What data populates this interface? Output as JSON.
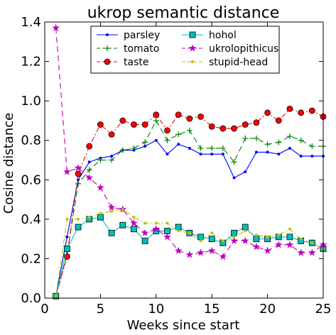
{
  "chart_data": {
    "type": "line",
    "title": "ukrop semantic distance",
    "xlabel": "Weeks since start",
    "ylabel": "Cosine distance",
    "xlim": [
      0,
      25
    ],
    "ylim": [
      0.0,
      1.4
    ],
    "xticks": [
      0,
      5,
      10,
      15,
      20,
      25
    ],
    "yticks": [
      0.0,
      0.2,
      0.4,
      0.6,
      0.8,
      1.0,
      1.2,
      1.4
    ],
    "grid": false,
    "legend_placement": "top-center",
    "series": [
      {
        "name": "parsley",
        "color": "#0000ff",
        "linestyle": "solid",
        "marker": "dot",
        "x": [
          1,
          2,
          3,
          4,
          5,
          6,
          7,
          8,
          9,
          10,
          11,
          12,
          13,
          14,
          15,
          16,
          17,
          18,
          19,
          20,
          21,
          22,
          23,
          24,
          25
        ],
        "y": [
          0.01,
          0.31,
          0.6,
          0.69,
          0.71,
          0.72,
          0.75,
          0.75,
          0.77,
          0.8,
          0.73,
          0.78,
          0.76,
          0.73,
          0.73,
          0.73,
          0.61,
          0.64,
          0.74,
          0.74,
          0.73,
          0.76,
          0.72,
          0.72,
          0.72
        ]
      },
      {
        "name": "tomato",
        "color": "#008000",
        "linestyle": "dashed",
        "marker": "plus",
        "x": [
          1,
          2,
          3,
          4,
          5,
          6,
          7,
          8,
          9,
          10,
          11,
          12,
          13,
          14,
          15,
          16,
          17,
          18,
          19,
          20,
          21,
          22,
          23,
          24,
          25
        ],
        "y": [
          0.01,
          0.22,
          0.58,
          0.65,
          0.7,
          0.7,
          0.75,
          0.76,
          0.79,
          0.9,
          0.8,
          0.83,
          0.85,
          0.76,
          0.76,
          0.76,
          0.69,
          0.81,
          0.81,
          0.78,
          0.79,
          0.82,
          0.8,
          0.77,
          0.77
        ]
      },
      {
        "name": "taste",
        "color": "#ff0000",
        "linestyle": "dashdot",
        "marker": "circle",
        "x": [
          1,
          2,
          3,
          4,
          5,
          6,
          7,
          8,
          9,
          10,
          11,
          12,
          13,
          14,
          15,
          16,
          17,
          18,
          19,
          20,
          21,
          22,
          23,
          24,
          25
        ],
        "y": [
          0.01,
          0.21,
          0.63,
          0.77,
          0.88,
          0.83,
          0.9,
          0.88,
          0.88,
          0.93,
          0.85,
          0.93,
          0.91,
          0.92,
          0.87,
          0.86,
          0.86,
          0.88,
          0.89,
          0.94,
          0.9,
          0.96,
          0.94,
          0.95,
          0.92
        ]
      },
      {
        "name": "hohol",
        "color": "#00bfbf",
        "linestyle": "solid",
        "marker": "square",
        "x": [
          1,
          2,
          3,
          4,
          5,
          6,
          7,
          8,
          9,
          10,
          11,
          12,
          13,
          14,
          15,
          16,
          17,
          18,
          19,
          20,
          21,
          22,
          23,
          24,
          25
        ],
        "y": [
          0.01,
          0.25,
          0.36,
          0.4,
          0.41,
          0.33,
          0.37,
          0.35,
          0.29,
          0.34,
          0.34,
          0.36,
          0.33,
          0.31,
          0.3,
          0.28,
          0.33,
          0.36,
          0.3,
          0.3,
          0.31,
          0.31,
          0.29,
          0.28,
          0.25
        ]
      },
      {
        "name": "ukrolopithicus",
        "color": "#bf00bf",
        "linestyle": "dashed",
        "marker": "star",
        "x": [
          1,
          2,
          3,
          4,
          5,
          6,
          7,
          8,
          9,
          10,
          11,
          12,
          13,
          14,
          15,
          16,
          17,
          18,
          19,
          20,
          21,
          22,
          23,
          24,
          25
        ],
        "y": [
          1.37,
          0.64,
          0.66,
          0.61,
          0.56,
          0.46,
          0.45,
          0.38,
          0.33,
          0.35,
          0.31,
          0.24,
          0.22,
          0.23,
          0.24,
          0.21,
          0.29,
          0.29,
          0.26,
          0.24,
          0.27,
          0.27,
          0.23,
          0.23,
          0.27
        ]
      },
      {
        "name": "stupid-head",
        "color": "#bfbf00",
        "linestyle": "dashdot",
        "marker": "dot",
        "x": [
          1,
          2,
          3,
          4,
          5,
          6,
          7,
          8,
          9,
          10,
          11,
          12,
          13,
          14,
          15,
          16,
          17,
          18,
          19,
          20,
          21,
          22,
          23,
          24,
          25
        ],
        "y": [
          0.01,
          0.4,
          0.4,
          0.41,
          0.43,
          0.44,
          0.45,
          0.41,
          0.38,
          0.38,
          0.38,
          0.34,
          0.33,
          0.29,
          0.33,
          0.29,
          0.31,
          0.34,
          0.32,
          0.31,
          0.32,
          0.35,
          0.3,
          0.28,
          0.25
        ]
      }
    ]
  }
}
